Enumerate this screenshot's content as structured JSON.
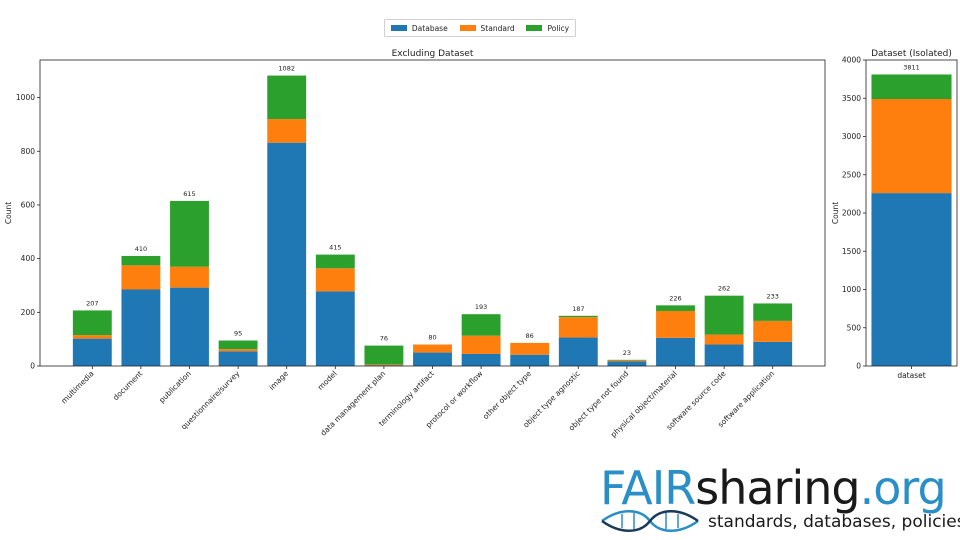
{
  "legend": {
    "items": [
      {
        "label": "Database",
        "color": "#1f77b4"
      },
      {
        "label": "Standard",
        "color": "#ff7f0e"
      },
      {
        "label": "Policy",
        "color": "#2ca02c"
      }
    ]
  },
  "brand": {
    "fair": "FAIR",
    "sharing": "sharing",
    "org": ".org",
    "tagline": "standards, databases, policies"
  },
  "chart_data": [
    {
      "type": "bar",
      "stacked": true,
      "title": "Excluding Dataset",
      "xlabel": "",
      "ylabel": "Count",
      "ylim": [
        0,
        1140
      ],
      "yticks": [
        0,
        200,
        400,
        600,
        800,
        1000
      ],
      "grid": false,
      "categories": [
        "multimedia",
        "document",
        "publication",
        "questionnaire/survey",
        "image",
        "model",
        "data management plan",
        "terminology artifact",
        "protocol or workflow",
        "other object type",
        "object type agnostic",
        "object type not found",
        "physical object/material",
        "software source code",
        "software application"
      ],
      "series": [
        {
          "name": "Database",
          "values": [
            102,
            285,
            292,
            55,
            832,
            278,
            3,
            50,
            45,
            42,
            106,
            17,
            105,
            80,
            90
          ]
        },
        {
          "name": "Standard",
          "values": [
            13,
            90,
            78,
            8,
            88,
            86,
            3,
            30,
            68,
            44,
            76,
            4,
            100,
            37,
            78
          ]
        },
        {
          "name": "Policy",
          "values": [
            92,
            35,
            245,
            32,
            162,
            51,
            70,
            0,
            80,
            0,
            5,
            2,
            21,
            145,
            65
          ]
        }
      ],
      "totals": [
        207,
        410,
        615,
        95,
        1082,
        415,
        76,
        80,
        193,
        86,
        187,
        23,
        226,
        262,
        233
      ]
    },
    {
      "type": "bar",
      "stacked": true,
      "title": "Dataset (Isolated)",
      "xlabel": "",
      "ylabel": "Count",
      "ylim": [
        0,
        4000
      ],
      "yticks": [
        0,
        500,
        1000,
        1500,
        2000,
        2500,
        3000,
        3500,
        4000
      ],
      "grid": false,
      "categories": [
        "dataset"
      ],
      "series": [
        {
          "name": "Database",
          "values": [
            2260
          ]
        },
        {
          "name": "Standard",
          "values": [
            1230
          ]
        },
        {
          "name": "Policy",
          "values": [
            321
          ]
        }
      ],
      "totals": [
        3811
      ]
    }
  ]
}
